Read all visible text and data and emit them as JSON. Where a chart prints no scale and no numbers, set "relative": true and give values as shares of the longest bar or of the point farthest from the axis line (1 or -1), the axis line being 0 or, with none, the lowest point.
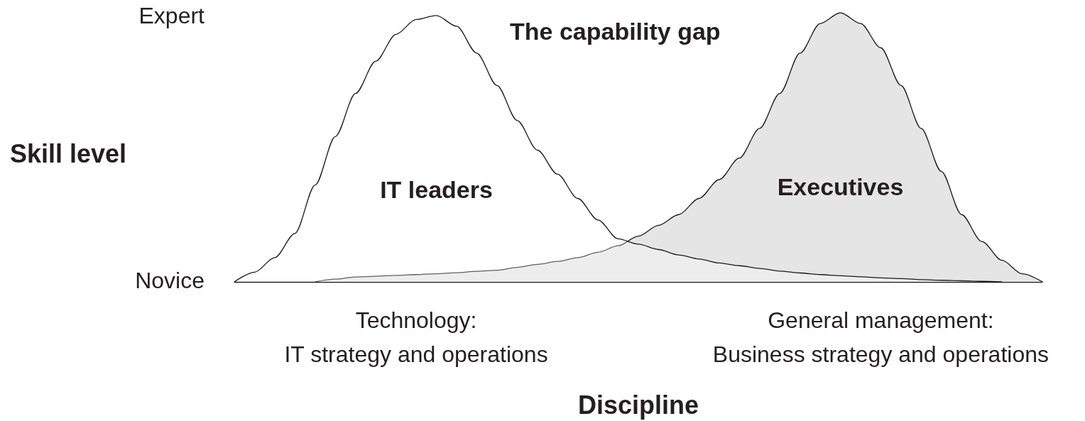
{
  "chart_data": {
    "type": "area",
    "relative": true,
    "title": "The capability gap",
    "xlabel": "Discipline",
    "ylabel": "Skill level",
    "annotations": [
      "Novice",
      "Expert"
    ],
    "categories": [
      null,
      null,
      null,
      null,
      null,
      null,
      null,
      null,
      null,
      "Technology:\nIT strategy and operations",
      null,
      null,
      null,
      null,
      null,
      null,
      null,
      null,
      null,
      null,
      null,
      null,
      null,
      null,
      null,
      null,
      null,
      null,
      null,
      null,
      null,
      null,
      "General management:\nBusiness strategy and operations",
      null,
      null,
      null,
      null,
      null,
      null,
      null,
      null
    ],
    "grid": false,
    "legend": false,
    "marker": "none",
    "series": [
      {
        "name": "Executives",
        "color": "#e5e5e6",
        "values": [
          null,
          null,
          null,
          null,
          0,
          0.01,
          0.018,
          0.021,
          0.024,
          0.027,
          0.03,
          0.034,
          0.039,
          0.043,
          0.054,
          0.065,
          0.076,
          0.09,
          0.11,
          0.134,
          0.17,
          0.21,
          0.25,
          0.31,
          0.38,
          0.46,
          0.57,
          0.7,
          0.85,
          0.96,
          1.0,
          0.96,
          0.87,
          0.73,
          0.57,
          0.41,
          0.25,
          0.15,
          0.08,
          0.03,
          0
        ]
      },
      {
        "name": "IT leaders",
        "color": "#ffffff",
        "values": [
          0,
          0.036,
          0.09,
          0.18,
          0.36,
          0.54,
          0.7,
          0.82,
          0.92,
          0.975,
          0.99,
          0.95,
          0.85,
          0.73,
          0.6,
          0.49,
          0.4,
          0.31,
          0.23,
          0.16,
          0.14,
          0.12,
          0.1,
          0.085,
          0.07,
          0.06,
          0.05,
          0.04,
          0.033,
          0.027,
          0.023,
          0.019,
          0.015,
          0.012,
          0.008,
          0.006,
          0.004,
          0.002,
          0,
          null,
          null
        ]
      }
    ]
  }
}
